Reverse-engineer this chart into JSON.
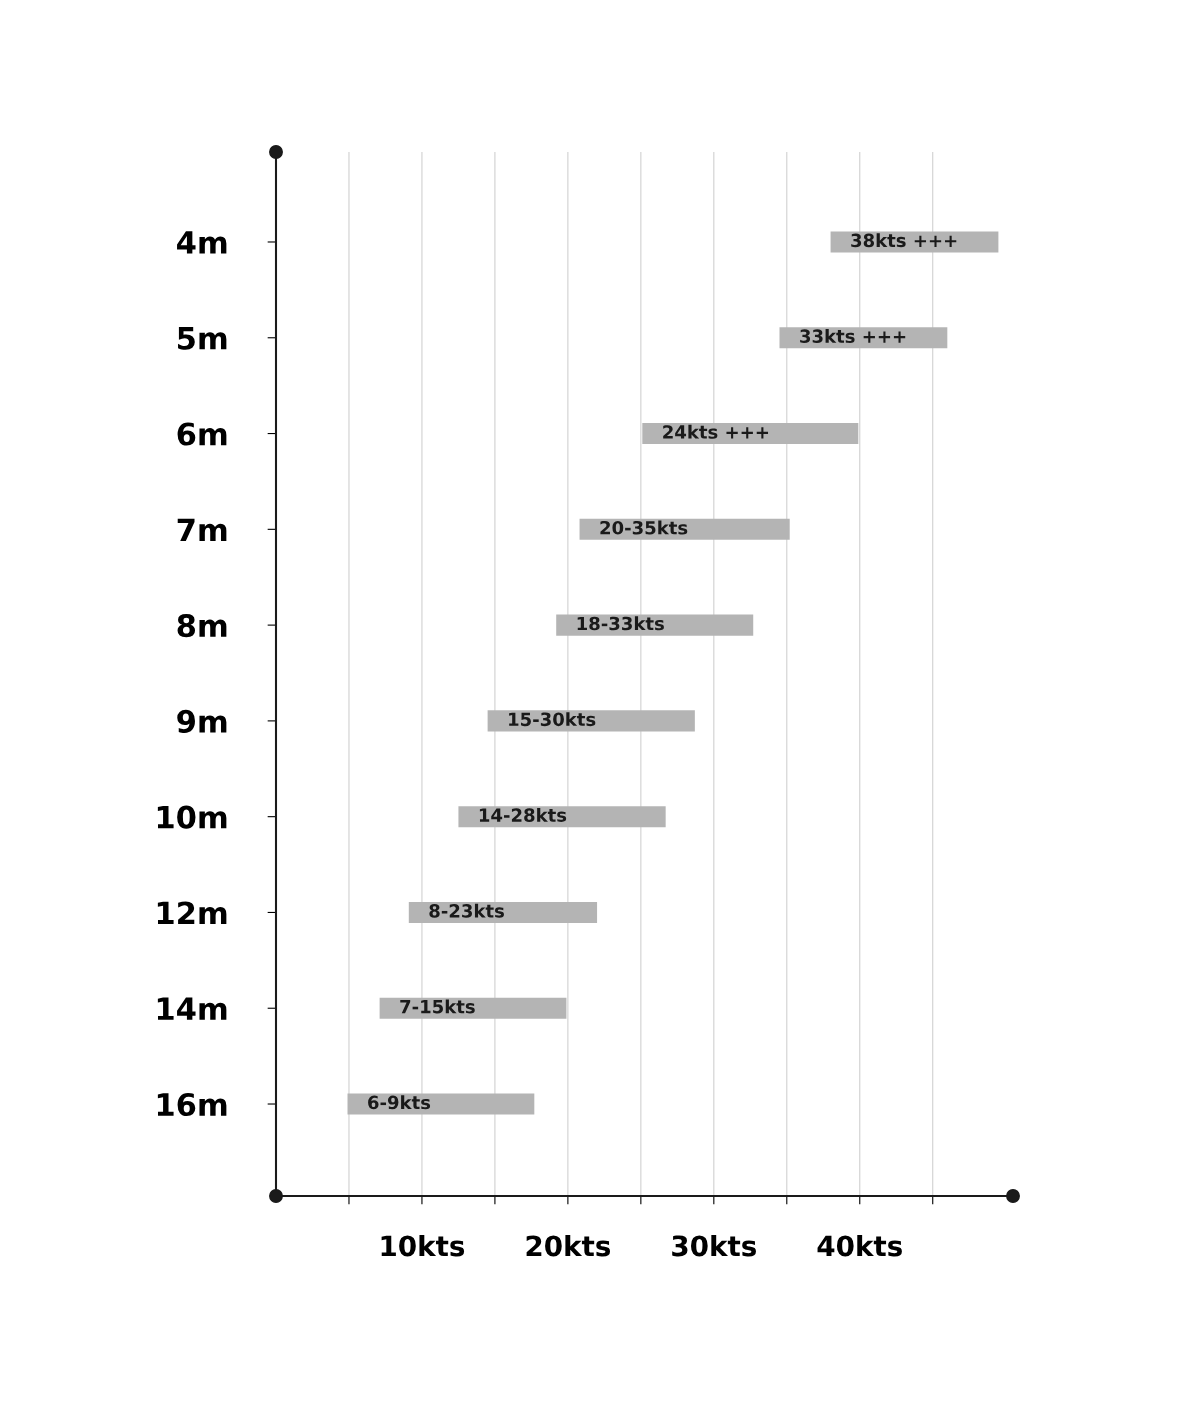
{
  "chart_data": {
    "type": "bar",
    "orientation": "horizontal",
    "categories": [
      "4m",
      "5m",
      "6m",
      "7m",
      "8m",
      "9m",
      "10m",
      "12m",
      "14m",
      "16m"
    ],
    "base": [
      38,
      34.5,
      25.1,
      20.8,
      19.2,
      14.5,
      12.5,
      9.1,
      7.1,
      4.9
    ],
    "values": [
      11.5,
      11.5,
      14.8,
      14.4,
      13.5,
      14.2,
      14.2,
      12.9,
      12.8,
      12.8
    ],
    "annotations": [
      {
        "text": "38kts +++",
        "x": 38,
        "y": "4m"
      },
      {
        "text": "33kts +++",
        "x": 34.5,
        "y": "5m"
      },
      {
        "text": "24kts +++",
        "x": 25.1,
        "y": "6m"
      },
      {
        "text": "20-35kts",
        "x": 20.8,
        "y": "7m"
      },
      {
        "text": "18-33kts",
        "x": 19.2,
        "y": "8m"
      },
      {
        "text": "15-30kts",
        "x": 14.5,
        "y": "9m"
      },
      {
        "text": "14-28kts",
        "x": 12.5,
        "y": "10m"
      },
      {
        "text": "8-23kts",
        "x": 9.1,
        "y": "12m"
      },
      {
        "text": "7-15kts",
        "x": 7.1,
        "y": "14m"
      },
      {
        "text": "6-9kts",
        "x": 4.9,
        "y": "16m"
      }
    ],
    "color": "#b4b4b4",
    "xlim": [
      0,
      50.5
    ],
    "xticks": [
      {
        "value": 5,
        "label": null
      },
      {
        "value": 10,
        "label": "10kts"
      },
      {
        "value": 15,
        "label": null
      },
      {
        "value": 20,
        "label": "20kts"
      },
      {
        "value": 25,
        "label": null
      },
      {
        "value": 30,
        "label": "30kts"
      },
      {
        "value": 35,
        "label": null
      },
      {
        "value": 40,
        "label": "40kts"
      },
      {
        "value": 45,
        "label": null
      }
    ],
    "grid": "x"
  }
}
